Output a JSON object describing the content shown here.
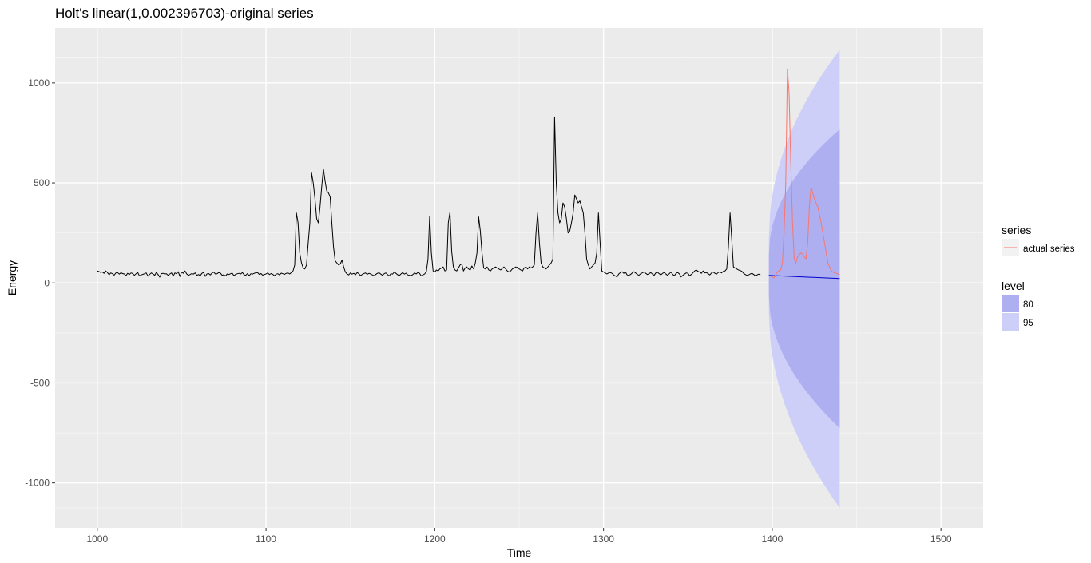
{
  "chart_data": {
    "type": "line",
    "title": "Holt's linear(1,0.002396703)-original series",
    "xlabel": "Time",
    "ylabel": "Energy",
    "xlim": [
      975,
      1525
    ],
    "ylim": [
      -1225,
      1275
    ],
    "x_ticks": [
      1000,
      1100,
      1200,
      1300,
      1400,
      1500
    ],
    "x_tick_labels": [
      "1000",
      "1100",
      "1200",
      "1300",
      "1400",
      "1500"
    ],
    "y_ticks": [
      -1000,
      -500,
      0,
      500,
      1000
    ],
    "y_tick_labels": [
      "-1000",
      "-500",
      "0",
      "500",
      "1000"
    ],
    "grid": true,
    "background_color": "#ebebeb",
    "original_series": {
      "color": "#000000",
      "x_start": 1000,
      "step": 1,
      "values": [
        60,
        57,
        53,
        55,
        48,
        60,
        52,
        41,
        50,
        46,
        39,
        50,
        52,
        44,
        51,
        47,
        45,
        36,
        48,
        42,
        50,
        47,
        38,
        46,
        52,
        35,
        40,
        43,
        46,
        50,
        34,
        42,
        50,
        45,
        38,
        53,
        42,
        29,
        47,
        48,
        45,
        46,
        38,
        45,
        50,
        35,
        50,
        46,
        56,
        32,
        55,
        48,
        60,
        45,
        38,
        42,
        47,
        44,
        50,
        38,
        42,
        36,
        48,
        52,
        33,
        45,
        47,
        40,
        50,
        54,
        45,
        46,
        52,
        49,
        38,
        41,
        35,
        45,
        42,
        46,
        49,
        36,
        43,
        46,
        48,
        45,
        52,
        41,
        38,
        47,
        36,
        46,
        44,
        48,
        51,
        52,
        43,
        47,
        39,
        42,
        45,
        50,
        42,
        47,
        43,
        36,
        44,
        46,
        40,
        49,
        46,
        43,
        48,
        50,
        45,
        52,
        60,
        90,
        350,
        300,
        150,
        100,
        75,
        70,
        90,
        200,
        300,
        550,
        500,
        420,
        320,
        300,
        380,
        480,
        570,
        510,
        460,
        450,
        430,
        300,
        180,
        110,
        100,
        90,
        95,
        115,
        80,
        55,
        45,
        40,
        50,
        44,
        48,
        41,
        52,
        46,
        37,
        42,
        47,
        50,
        43,
        48,
        45,
        40,
        36,
        42,
        48,
        51,
        44,
        38,
        46,
        50,
        42,
        35,
        46,
        44,
        54,
        48,
        41,
        37,
        45,
        52,
        44,
        49,
        40,
        38,
        36,
        42,
        50,
        45,
        52,
        48,
        35,
        40,
        45,
        56,
        120,
        335,
        150,
        60,
        55,
        65,
        60,
        70,
        75,
        80,
        60,
        65,
        300,
        355,
        160,
        80,
        65,
        60,
        75,
        90,
        95,
        60,
        75,
        80,
        70,
        65,
        85,
        70,
        100,
        150,
        330,
        260,
        150,
        75,
        70,
        80,
        65,
        60,
        70,
        75,
        80,
        75,
        70,
        65,
        72,
        80,
        70,
        60,
        55,
        60,
        70,
        75,
        80,
        78,
        70,
        65,
        60,
        75,
        80,
        70,
        80,
        75,
        80,
        90,
        250,
        350,
        200,
        100,
        80,
        75,
        70,
        80,
        90,
        100,
        120,
        830,
        500,
        350,
        300,
        320,
        400,
        380,
        320,
        250,
        260,
        300,
        350,
        440,
        420,
        400,
        410,
        380,
        350,
        250,
        120,
        90,
        70,
        80,
        90,
        100,
        150,
        350,
        200,
        60,
        55,
        50,
        45,
        50,
        52,
        48,
        40,
        35,
        30,
        45,
        52,
        56,
        48,
        55,
        40,
        38,
        42,
        50,
        56,
        50,
        43,
        38,
        46,
        50,
        55,
        48,
        42,
        46,
        52,
        44,
        38,
        50,
        54,
        46,
        40,
        48,
        52,
        44,
        38,
        46,
        55,
        42,
        36,
        48,
        52,
        45,
        30,
        38,
        44,
        50,
        48,
        36,
        42,
        50,
        60,
        65,
        58,
        54,
        48,
        60,
        50,
        52,
        46,
        40,
        50,
        55,
        48,
        44,
        52,
        56,
        50,
        58,
        60,
        70,
        180,
        350,
        220,
        80,
        75,
        70,
        65,
        62,
        58,
        48,
        42,
        38,
        40,
        45,
        48,
        42,
        36,
        40,
        44,
        40
      ]
    },
    "forecast": {
      "point_forecast_color": "#0000cc",
      "x_start": 1398,
      "x_end": 1440,
      "point_start": 38,
      "point_end": 22,
      "level80_start": [
        -65,
        141
      ],
      "level80_end": [
        -727,
        768
      ],
      "level95_start": [
        -150,
        226
      ],
      "level95_end": [
        -1125,
        1165
      ]
    },
    "actual_series": {
      "name": "actual series",
      "color": "#f8766d",
      "x_start": 1399,
      "step": 1,
      "values": [
        35,
        30,
        25,
        40,
        55,
        60,
        65,
        100,
        250,
        500,
        1070,
        950,
        600,
        300,
        120,
        100,
        130,
        140,
        150,
        145,
        130,
        120,
        200,
        380,
        480,
        450,
        420,
        400,
        380,
        340,
        300,
        250,
        200,
        150,
        100,
        80,
        60,
        55,
        50,
        48,
        45,
        42
      ]
    },
    "legend": {
      "placement": "right",
      "series_title": "series",
      "series_items": [
        {
          "label": "actual series",
          "color": "#f8766d"
        }
      ],
      "level_title": "level",
      "level_items": [
        {
          "label": "80",
          "color": "#adaff0"
        },
        {
          "label": "95",
          "color": "#cdcff8"
        }
      ]
    }
  }
}
